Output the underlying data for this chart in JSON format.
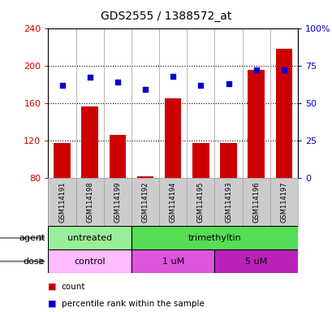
{
  "title": "GDS2555 / 1388572_at",
  "samples": [
    "GSM114191",
    "GSM114198",
    "GSM114199",
    "GSM114192",
    "GSM114194",
    "GSM114195",
    "GSM114193",
    "GSM114196",
    "GSM114197"
  ],
  "counts": [
    117,
    156,
    126,
    82,
    165,
    117,
    117,
    195,
    218
  ],
  "percentile_ranks": [
    62,
    67,
    64,
    59,
    68,
    62,
    63,
    72,
    72
  ],
  "ylim_left": [
    80,
    240
  ],
  "ylim_right": [
    0,
    100
  ],
  "yticks_left": [
    80,
    120,
    160,
    200,
    240
  ],
  "yticks_right": [
    0,
    25,
    50,
    75,
    100
  ],
  "ytick_labels_right": [
    "0",
    "25",
    "50",
    "75",
    "100%"
  ],
  "bar_color": "#cc0000",
  "dot_color": "#0000cc",
  "bar_bottom": 80,
  "agent_groups": [
    {
      "label": "untreated",
      "start": 0,
      "end": 3,
      "color": "#99ee99"
    },
    {
      "label": "trimethyltin",
      "start": 3,
      "end": 9,
      "color": "#55dd55"
    }
  ],
  "dose_groups": [
    {
      "label": "control",
      "start": 0,
      "end": 3,
      "color": "#ffbbff"
    },
    {
      "label": "1 uM",
      "start": 3,
      "end": 6,
      "color": "#dd55dd"
    },
    {
      "label": "5 uM",
      "start": 6,
      "end": 9,
      "color": "#bb22bb"
    }
  ],
  "legend_labels": [
    "count",
    "percentile rank within the sample"
  ],
  "xlabel_agent": "agent",
  "xlabel_dose": "dose",
  "grid_color": "#000000",
  "tick_label_color_left": "#cc0000",
  "tick_label_color_right": "#0000cc",
  "bg_color": "#ffffff",
  "sample_bg_color": "#cccccc",
  "sample_border_color": "#999999",
  "figsize": [
    4.1,
    3.84
  ],
  "dpi": 100
}
